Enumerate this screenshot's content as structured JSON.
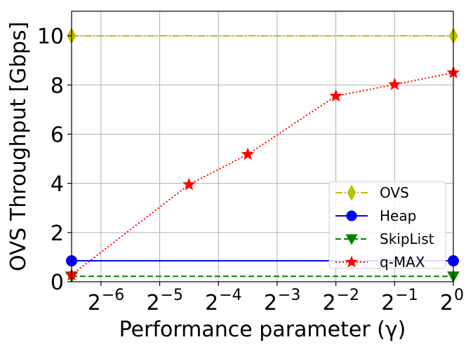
{
  "chart_data": {
    "type": "line",
    "xlabel": "Performance parameter (γ)",
    "ylabel": "OVS Throughput [Gbps]",
    "x_scale": "log2",
    "xlim": [
      0.0110485,
      1.0
    ],
    "ylim": [
      0,
      11
    ],
    "grid": true,
    "legend_position": "lower-right",
    "x_ticks": [
      {
        "value": 0.015625,
        "base": "2",
        "exp": "−6"
      },
      {
        "value": 0.03125,
        "base": "2",
        "exp": "−5"
      },
      {
        "value": 0.0625,
        "base": "2",
        "exp": "−4"
      },
      {
        "value": 0.125,
        "base": "2",
        "exp": "−3"
      },
      {
        "value": 0.25,
        "base": "2",
        "exp": "−2"
      },
      {
        "value": 0.5,
        "base": "2",
        "exp": "−1"
      },
      {
        "value": 1.0,
        "base": "2",
        "exp": "0"
      }
    ],
    "y_ticks": [
      0,
      2,
      4,
      6,
      8,
      10
    ],
    "series": [
      {
        "name": "OVS",
        "color": "#bfbf00",
        "dash": "dashdot",
        "marker": "thin-diamond",
        "x": [
          0.0110485,
          1.0
        ],
        "y": [
          10.0,
          10.0
        ]
      },
      {
        "name": "Heap",
        "color": "#0000ff",
        "dash": "solid",
        "marker": "circle",
        "x": [
          0.0110485,
          1.0
        ],
        "y": [
          0.85,
          0.85
        ]
      },
      {
        "name": "SkipList",
        "color": "#008000",
        "dash": "dashed",
        "marker": "triangle-down",
        "x": [
          0.0110485,
          1.0
        ],
        "y": [
          0.22,
          0.22
        ]
      },
      {
        "name": "q-MAX",
        "color": "#ff0000",
        "dash": "dotted",
        "marker": "star",
        "x": [
          0.0110485,
          0.0441942,
          0.0883883,
          0.25,
          0.5,
          1.0
        ],
        "y": [
          0.28,
          3.95,
          5.18,
          7.55,
          8.02,
          8.5
        ]
      }
    ]
  }
}
